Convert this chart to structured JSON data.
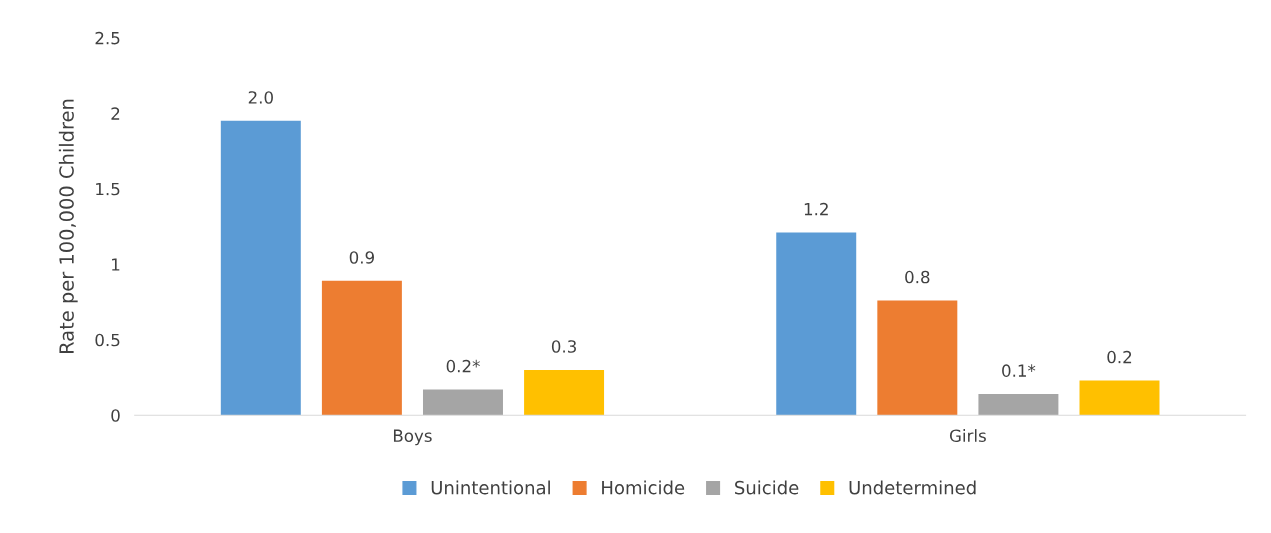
{
  "chart_data": {
    "type": "bar",
    "ylabel": "Rate per 100,000 Children",
    "categories": [
      "Boys",
      "Girls"
    ],
    "series": [
      {
        "name": "Unintentional",
        "color": "#5b9bd5",
        "values": [
          1.95,
          1.21
        ],
        "value_labels": [
          "2.0",
          "1.2"
        ]
      },
      {
        "name": "Homicide",
        "color": "#ed7d31",
        "values": [
          0.89,
          0.76
        ],
        "value_labels": [
          "0.9",
          "0.8"
        ]
      },
      {
        "name": "Suicide",
        "color": "#a5a5a5",
        "values": [
          0.17,
          0.14
        ],
        "value_labels": [
          "0.2*",
          "0.1*"
        ]
      },
      {
        "name": "Undetermined",
        "color": "#ffc000",
        "values": [
          0.3,
          0.23
        ],
        "value_labels": [
          "0.3",
          "0.2"
        ]
      }
    ],
    "ylim": [
      0,
      2.5
    ],
    "yticks": [
      0,
      0.5,
      1,
      1.5,
      2,
      2.5
    ],
    "grid": false,
    "legend": "bottom"
  }
}
